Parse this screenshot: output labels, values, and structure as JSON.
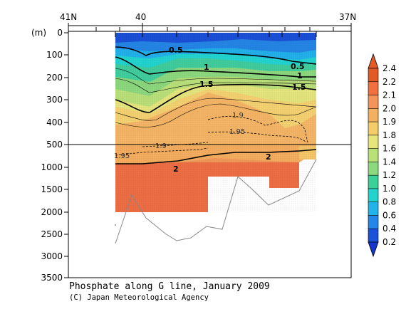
{
  "chart_data": {
    "type": "heatmap",
    "title": "Phosphate along G line, January 2009",
    "credit": "(C) Japan Meteorological Agency",
    "y_unit_label": "(m)",
    "lat_labels": [
      "41N",
      "40",
      "37N"
    ],
    "depth_ticks_upper": [
      "0",
      "100",
      "200",
      "300",
      "400",
      "500"
    ],
    "depth_ticks_lower": [
      "1000",
      "1500",
      "2000",
      "2500",
      "3000",
      "3500"
    ],
    "colorbar": {
      "labels": [
        "2.4",
        "2.2",
        "2.1",
        "2.0",
        "1.9",
        "1.8",
        "1.6",
        "1.4",
        "1.2",
        "1.0",
        "0.8",
        "0.6",
        "0.4",
        "0.2"
      ],
      "colors": [
        "#e25a24",
        "#f07040",
        "#f4945a",
        "#f3b05e",
        "#f4cc6a",
        "#e6e67a",
        "#b9e178",
        "#8cd97e",
        "#3ccf9a",
        "#24d4cc",
        "#22b3ea",
        "#2486e6",
        "#1a52d8"
      ]
    },
    "contour_labels": [
      "0.5",
      "0.5",
      "1",
      "1",
      "1.5",
      "1.5",
      "1.9",
      "1.95",
      "1.95",
      "1.9",
      "2",
      "2"
    ]
  }
}
